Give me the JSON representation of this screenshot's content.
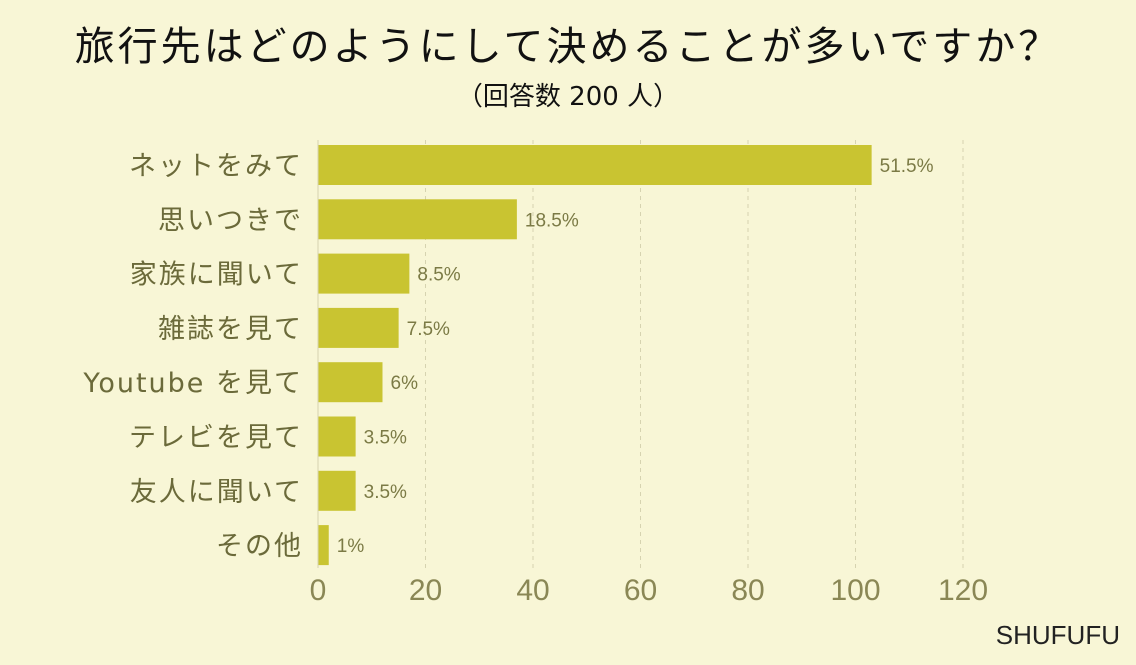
{
  "title": "旅行先はどのようにして決めることが多いですか？",
  "subtitle": "（回答数 200 人）",
  "brand": "SHUFUFU",
  "colors": {
    "background": "#f8f6d6",
    "bar": "#c9c431",
    "category_text": "#6b6a3a",
    "axis_text": "#8a8755",
    "value_text": "#7b7a45",
    "grid": "#d6d3b0"
  },
  "chart_data": {
    "type": "bar",
    "orientation": "horizontal",
    "categories": [
      "ネットをみて",
      "思いつきで",
      "家族に聞いて",
      "雑誌を見て",
      "Youtube を見て",
      "テレビを見て",
      "友人に聞いて",
      "その他"
    ],
    "values": [
      103,
      37,
      17,
      15,
      12,
      7,
      7,
      2
    ],
    "value_labels": [
      "51.5%",
      "18.5%",
      "8.5%",
      "7.5%",
      "6%",
      "3.5%",
      "3.5%",
      "1%"
    ],
    "xlim": [
      0,
      120
    ],
    "xticks": [
      "0",
      "20",
      "40",
      "60",
      "80",
      "100",
      "120"
    ],
    "grid": true,
    "xlabel": "",
    "ylabel": ""
  }
}
